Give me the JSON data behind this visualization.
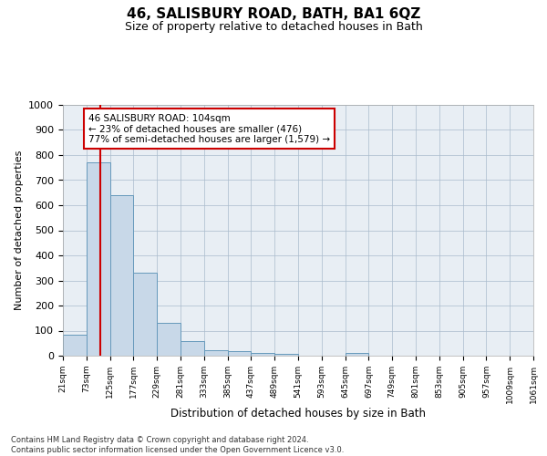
{
  "title": "46, SALISBURY ROAD, BATH, BA1 6QZ",
  "subtitle": "Size of property relative to detached houses in Bath",
  "xlabel": "Distribution of detached houses by size in Bath",
  "ylabel": "Number of detached properties",
  "bar_color": "#c8d8e8",
  "bar_edge_color": "#6699bb",
  "grid_color": "#aabbcc",
  "vline_color": "#cc0000",
  "property_size": 104,
  "annotation_line1": "46 SALISBURY ROAD: 104sqm",
  "annotation_line2": "← 23% of detached houses are smaller (476)",
  "annotation_line3": "77% of semi-detached houses are larger (1,579) →",
  "annotation_box_color": "#ffffff",
  "annotation_box_edge": "#cc0000",
  "footer_text": "Contains HM Land Registry data © Crown copyright and database right 2024.\nContains public sector information licensed under the Open Government Licence v3.0.",
  "bin_edges": [
    21,
    73,
    125,
    177,
    229,
    281,
    333,
    385,
    437,
    489,
    541,
    593,
    645,
    697,
    749,
    801,
    853,
    905,
    957,
    1009,
    1061
  ],
  "bin_counts": [
    82,
    770,
    640,
    330,
    132,
    57,
    22,
    18,
    12,
    8,
    0,
    0,
    10,
    0,
    0,
    0,
    0,
    0,
    0,
    0
  ],
  "ylim": [
    0,
    1000
  ],
  "yticks": [
    0,
    100,
    200,
    300,
    400,
    500,
    600,
    700,
    800,
    900,
    1000
  ],
  "background_color": "#e8eef4",
  "title_fontsize": 11,
  "subtitle_fontsize": 9
}
